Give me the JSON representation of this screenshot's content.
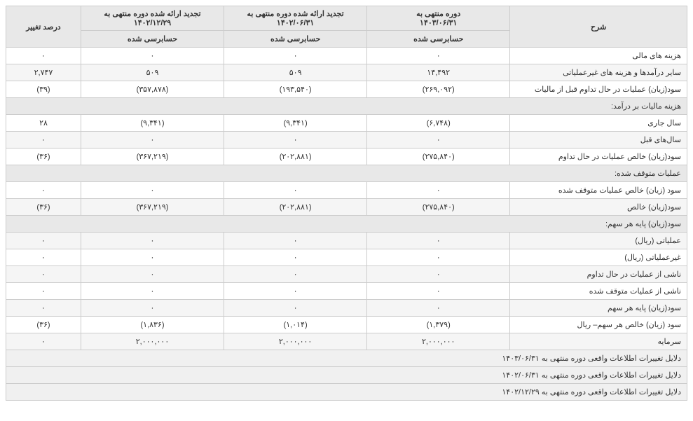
{
  "headers": {
    "desc": "شرح",
    "p1_line1": "دوره منتهی به",
    "p1_line2": "۱۴۰۳/۰۶/۳۱",
    "p2_line1": "تجدید ارائه شده دوره منتهی به",
    "p2_line2": "۱۴۰۲/۰۶/۳۱",
    "p3_line1": "تجدید ارائه شده دوره منتهی به",
    "p3_line2": "۱۴۰۲/۱۲/۲۹",
    "pct": "درصد تغییر",
    "audited": "حسابرسی شده"
  },
  "rows": [
    {
      "type": "data",
      "alt": false,
      "desc": "هزینه های مالی",
      "v1": "۰",
      "v2": "۰",
      "v3": "۰",
      "pct": "۰"
    },
    {
      "type": "data",
      "alt": true,
      "desc": "سایر درآمدها و هزینه های غیرعملیاتی",
      "v1": "۱۴,۴۹۲",
      "v2": "۵۰۹",
      "v3": "۵۰۹",
      "pct": "۲,۷۴۷"
    },
    {
      "type": "data",
      "alt": false,
      "desc": "سود(زیان) عملیات در حال تداوم قبل از مالیات",
      "v1": "(۲۶۹,۰۹۲)",
      "v2": "(۱۹۳,۵۴۰)",
      "v3": "(۳۵۷,۸۷۸)",
      "pct": "(۳۹)"
    },
    {
      "type": "section",
      "desc": "هزینه مالیات بر درآمد:"
    },
    {
      "type": "data",
      "alt": false,
      "desc": "سال جاری",
      "v1": "(۶,۷۴۸)",
      "v2": "(۹,۳۴۱)",
      "v3": "(۹,۳۴۱)",
      "pct": "۲۸"
    },
    {
      "type": "data",
      "alt": true,
      "desc": "سال‌های قبل",
      "v1": "۰",
      "v2": "۰",
      "v3": "۰",
      "pct": "۰"
    },
    {
      "type": "data",
      "alt": false,
      "desc": "سود(زیان) خالص عملیات در حال تداوم",
      "v1": "(۲۷۵,۸۴۰)",
      "v2": "(۲۰۲,۸۸۱)",
      "v3": "(۳۶۷,۲۱۹)",
      "pct": "(۳۶)"
    },
    {
      "type": "section",
      "desc": "عملیات متوقف شده:"
    },
    {
      "type": "data",
      "alt": false,
      "desc": "سود (زیان) خالص عملیات متوقف شده",
      "v1": "۰",
      "v2": "۰",
      "v3": "۰",
      "pct": "۰"
    },
    {
      "type": "data",
      "alt": true,
      "desc": "سود(زیان) خالص",
      "v1": "(۲۷۵,۸۴۰)",
      "v2": "(۲۰۲,۸۸۱)",
      "v3": "(۳۶۷,۲۱۹)",
      "pct": "(۳۶)"
    },
    {
      "type": "section",
      "desc": "سود(زیان) پایه هر سهم:"
    },
    {
      "type": "data",
      "alt": true,
      "desc": "عملیاتی (ریال)",
      "v1": "۰",
      "v2": "۰",
      "v3": "۰",
      "pct": "۰"
    },
    {
      "type": "data",
      "alt": false,
      "desc": "غیرعملیاتی (ریال)",
      "v1": "۰",
      "v2": "۰",
      "v3": "۰",
      "pct": "۰"
    },
    {
      "type": "data",
      "alt": true,
      "desc": "ناشی از عملیات در حال تداوم",
      "v1": "۰",
      "v2": "۰",
      "v3": "۰",
      "pct": "۰"
    },
    {
      "type": "data",
      "alt": false,
      "desc": "ناشی از عملیات متوقف شده",
      "v1": "۰",
      "v2": "۰",
      "v3": "۰",
      "pct": "۰"
    },
    {
      "type": "data",
      "alt": true,
      "desc": "سود(زیان) پایه هر سهم",
      "v1": "۰",
      "v2": "۰",
      "v3": "۰",
      "pct": "۰"
    },
    {
      "type": "data",
      "alt": false,
      "desc": "سود (زیان) خالص هر سهم– ریال",
      "v1": "(۱,۳۷۹)",
      "v2": "(۱,۰۱۴)",
      "v3": "(۱,۸۳۶)",
      "pct": "(۳۶)"
    },
    {
      "type": "data",
      "alt": true,
      "desc": "سرمایه",
      "v1": "۲,۰۰۰,۰۰۰",
      "v2": "۲,۰۰۰,۰۰۰",
      "v3": "۲,۰۰۰,۰۰۰",
      "pct": "۰"
    }
  ],
  "footers": [
    "دلایل تغییرات اطلاعات واقعی دوره منتهی به ۱۴۰۳/۰۶/۳۱",
    "دلایل تغییرات اطلاعات واقعی دوره منتهی به ۱۴۰۲/۰۶/۳۱",
    "دلایل تغییرات اطلاعات واقعی دوره منتهی به ۱۴۰۲/۱۲/۲۹"
  ]
}
